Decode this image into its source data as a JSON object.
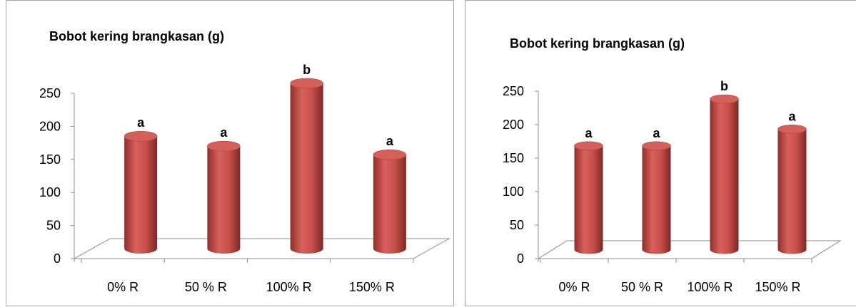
{
  "chart_data": [
    {
      "type": "bar",
      "title": "Bobot kering brangkasan (g)",
      "categories": [
        "0% R",
        "50 % R",
        "100% R",
        "150% R"
      ],
      "values": [
        170,
        155,
        250,
        142
      ],
      "data_labels": [
        "a",
        "a",
        "b",
        "a"
      ],
      "yticks": [
        "0",
        "50",
        "100",
        "150",
        "200",
        "250"
      ],
      "ylim": [
        0,
        250
      ],
      "grid": false,
      "bar_color": "#c0504d"
    },
    {
      "type": "bar",
      "title": "Bobot kering brangkasan (g)",
      "categories": [
        "0% R",
        "50 % R",
        "100% R",
        "150% R"
      ],
      "values": [
        155,
        155,
        225,
        180
      ],
      "data_labels": [
        "a",
        "a",
        "b",
        "a"
      ],
      "yticks": [
        "0",
        "50",
        "100",
        "150",
        "200",
        "250"
      ],
      "ylim": [
        0,
        250
      ],
      "grid": false,
      "bar_color": "#c0504d"
    }
  ]
}
